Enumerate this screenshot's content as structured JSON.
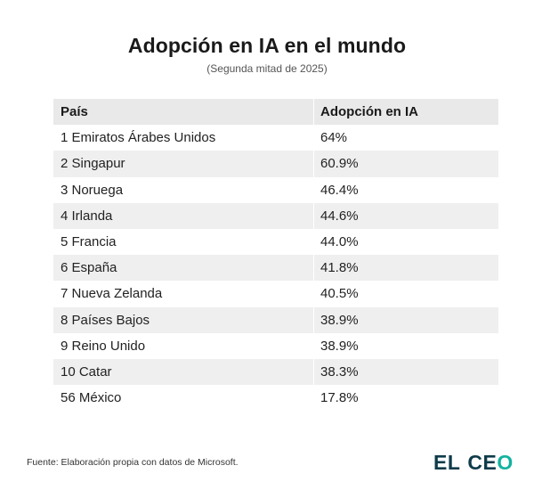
{
  "chart_data": {
    "type": "table",
    "title": "Adopción en IA en el mundo",
    "subtitle": "(Segunda mitad de 2025)",
    "columns": [
      "País",
      "Adopción en IA"
    ],
    "rows": [
      {
        "country": "1 Emiratos Árabes Unidos",
        "value": "64%"
      },
      {
        "country": "2 Singapur",
        "value": "60.9%"
      },
      {
        "country": "3 Noruega",
        "value": "46.4%"
      },
      {
        "country": "4 Irlanda",
        "value": "44.6%"
      },
      {
        "country": "5 Francia",
        "value": "44.0%"
      },
      {
        "country": "6 España",
        "value": "41.8%"
      },
      {
        "country": "7 Nueva Zelanda",
        "value": "40.5%"
      },
      {
        "country": "8 Países Bajos",
        "value": "38.9%"
      },
      {
        "country": "9 Reino Unido",
        "value": "38.9%"
      },
      {
        "country": "10 Catar",
        "value": "38.3%"
      },
      {
        "country": "56 México",
        "value": "17.8%"
      }
    ]
  },
  "footer": {
    "source": "Fuente: Elaboración propia con datos de Microsoft.",
    "logo_el": "EL",
    "logo_c": "C",
    "logo_e": "E",
    "logo_o": "O"
  },
  "colors": {
    "header_bg": "#e9e9e9",
    "stripe_bg": "#efefef",
    "logo_dark": "#0f3b4a",
    "logo_accent": "#12b2a0"
  }
}
